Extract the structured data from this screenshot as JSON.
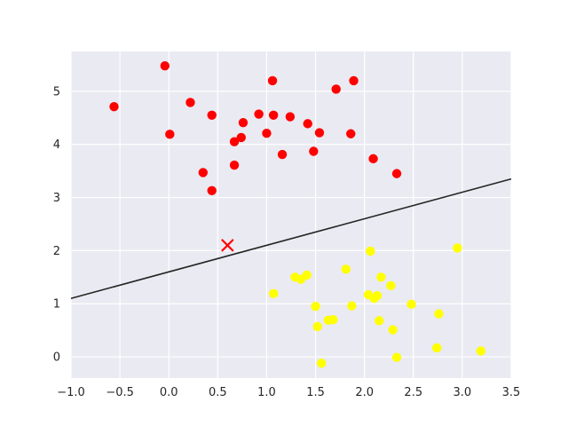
{
  "chart_data": {
    "type": "scatter",
    "title": "",
    "xlabel": "",
    "ylabel": "",
    "xlim": [
      -1.0,
      3.5
    ],
    "ylim": [
      -0.4,
      5.75
    ],
    "grid": true,
    "xticks": [
      "−1.0",
      "−0.5",
      "0.0",
      "0.5",
      "1.0",
      "1.5",
      "2.0",
      "2.5",
      "3.0",
      "3.5"
    ],
    "yticks": [
      "0",
      "1",
      "2",
      "3",
      "4",
      "5"
    ],
    "series": [
      {
        "color": "#ff0000",
        "marker": "circle",
        "points": [
          [
            -0.56,
            4.71
          ],
          [
            -0.04,
            5.48
          ],
          [
            0.01,
            4.19
          ],
          [
            0.22,
            4.79
          ],
          [
            0.35,
            3.47
          ],
          [
            0.44,
            4.55
          ],
          [
            0.44,
            3.13
          ],
          [
            0.67,
            4.05
          ],
          [
            0.67,
            3.61
          ],
          [
            0.74,
            4.13
          ],
          [
            0.76,
            4.41
          ],
          [
            0.92,
            4.57
          ],
          [
            1.0,
            4.21
          ],
          [
            1.06,
            5.2
          ],
          [
            1.07,
            4.55
          ],
          [
            1.16,
            3.81
          ],
          [
            1.24,
            4.52
          ],
          [
            1.42,
            4.39
          ],
          [
            1.48,
            3.87
          ],
          [
            1.54,
            4.22
          ],
          [
            1.71,
            5.04
          ],
          [
            1.86,
            4.2
          ],
          [
            1.89,
            5.2
          ],
          [
            2.09,
            3.73
          ],
          [
            2.33,
            3.45
          ]
        ]
      },
      {
        "color": "#ffff00",
        "marker": "circle",
        "points": [
          [
            1.07,
            1.19
          ],
          [
            1.29,
            1.5
          ],
          [
            1.35,
            1.46
          ],
          [
            1.41,
            1.54
          ],
          [
            1.5,
            0.95
          ],
          [
            1.52,
            0.57
          ],
          [
            1.56,
            -0.12
          ],
          [
            1.63,
            0.69
          ],
          [
            1.68,
            0.7
          ],
          [
            1.81,
            1.65
          ],
          [
            1.87,
            0.96
          ],
          [
            2.04,
            1.17
          ],
          [
            2.06,
            1.99
          ],
          [
            2.1,
            1.1
          ],
          [
            2.13,
            1.15
          ],
          [
            2.15,
            0.68
          ],
          [
            2.17,
            1.5
          ],
          [
            2.27,
            1.34
          ],
          [
            2.29,
            0.51
          ],
          [
            2.33,
            -0.01
          ],
          [
            2.48,
            0.99
          ],
          [
            2.74,
            0.17
          ],
          [
            2.76,
            0.81
          ],
          [
            2.95,
            2.05
          ],
          [
            3.19,
            0.11
          ]
        ]
      }
    ],
    "new_point": {
      "x": 0.6,
      "y": 2.1,
      "marker": "x",
      "color": "#ff0000"
    },
    "line": {
      "slope": 0.5,
      "intercept": 1.6,
      "color": "#262626"
    }
  }
}
